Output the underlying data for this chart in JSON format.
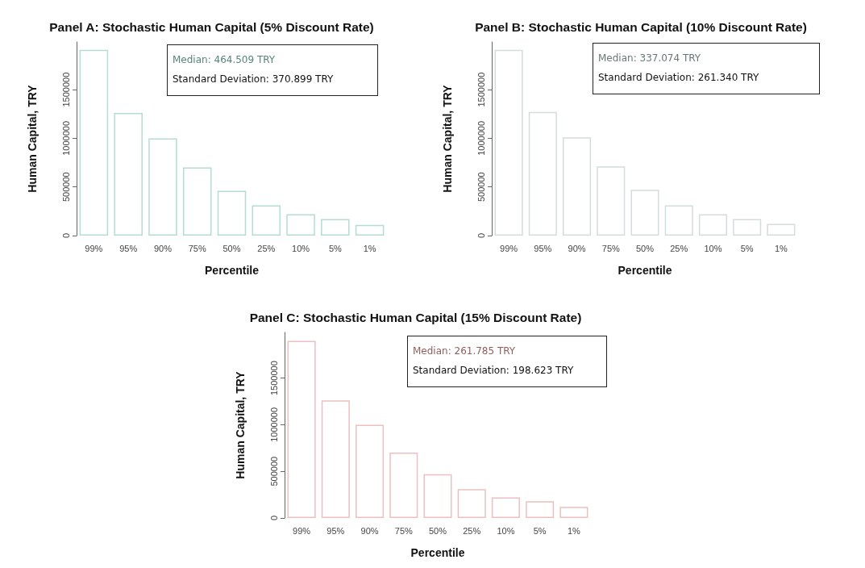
{
  "chart_data": [
    {
      "type": "bar",
      "title": "Panel A: Stochastic Human Capital (5% Discount Rate)",
      "xlabel": "Percentile",
      "ylabel": "Human Capital, TRY",
      "categories": [
        "99%",
        "95%",
        "90%",
        "75%",
        "50%",
        "25%",
        "10%",
        "5%",
        "1%"
      ],
      "series": [
        {
          "color": "#b4dcd4",
          "values": [
            1910000,
            1260000,
            1000000,
            700000,
            460000,
            310000,
            220000,
            170000,
            110000
          ]
        }
      ],
      "ylim": [
        0,
        1990000
      ],
      "yticks": [
        0,
        500000,
        1000000,
        1500000
      ],
      "annotations": [
        "Median: 464.509 TRY",
        "Standard Deviation: 370.899 TRY"
      ]
    },
    {
      "type": "bar",
      "title": "Panel B: Stochastic Human Capital (10% Discount Rate)",
      "xlabel": "Percentile",
      "ylabel": "Human Capital, TRY",
      "categories": [
        "99%",
        "95%",
        "90%",
        "75%",
        "50%",
        "25%",
        "10%",
        "5%",
        "1%"
      ],
      "series": [
        {
          "color": "#d4dcdc",
          "values": [
            1910000,
            1270000,
            1010000,
            710000,
            470000,
            310000,
            220000,
            170000,
            120000
          ]
        }
      ],
      "ylim": [
        0,
        1990000
      ],
      "yticks": [
        0,
        500000,
        1000000,
        1500000
      ],
      "annotations": [
        "Median: 337.074 TRY",
        "Standard Deviation: 261.340 TRY"
      ]
    },
    {
      "type": "bar",
      "title": "Panel C: Stochastic Human Capital (15% Discount Rate)",
      "xlabel": "Percentile",
      "ylabel": "Human Capital, TRY",
      "categories": [
        "99%",
        "95%",
        "90%",
        "75%",
        "50%",
        "25%",
        "10%",
        "5%",
        "1%"
      ],
      "series": [
        {
          "color": "#ecc0c0",
          "values": [
            1900000,
            1260000,
            1000000,
            700000,
            470000,
            310000,
            220000,
            180000,
            120000
          ]
        }
      ],
      "ylim": [
        0,
        1990000
      ],
      "yticks": [
        0,
        500000,
        1000000,
        1500000
      ],
      "annotations": [
        "Median: 261.785 TRY",
        "Standard Deviation: 198.623 TRY"
      ]
    }
  ]
}
